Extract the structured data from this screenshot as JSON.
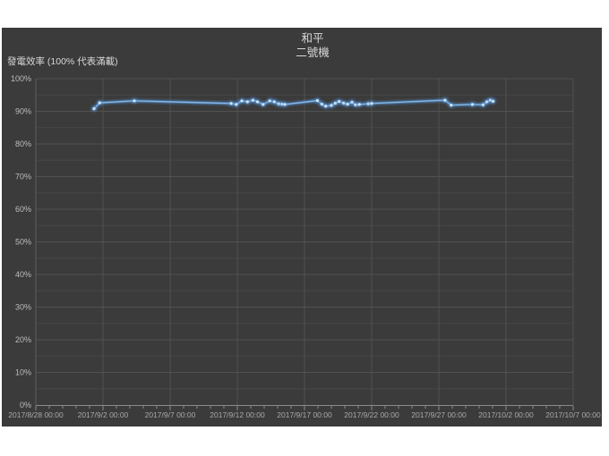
{
  "chart": {
    "title_lines": [
      "和平",
      "二號機"
    ],
    "y_axis_title": "發電效率 (100% 代表滿載)",
    "colors": {
      "canvas_bg": "#3b3b3b",
      "gridline_major": "#525252",
      "gridline_minor": "#464646",
      "axis_line": "#8a8a8a",
      "y_label": "#bdbdbd",
      "x_label": "#a9a9a9",
      "title_text": "#d9d9d9",
      "line_core": "#82b4e8",
      "line_main": "#5b9bd5",
      "line_glow": "#4f8fd4",
      "marker": "#cfe3f5"
    }
  },
  "chart_data": {
    "type": "line",
    "title": "和平 二號機",
    "ylabel": "發電效率 (100% 代表滿載)",
    "xlabel": "",
    "ylim": [
      0,
      100
    ],
    "y_major_step": 10,
    "y_minor_step": 5,
    "grid": true,
    "legend": "none",
    "x_start": "2017/8/28 00:00",
    "x_end": "2017/10/7 00:00",
    "x_tick_interval_days": 5,
    "x_minor_tick_interval_days": 1,
    "x_tick_labels": [
      "2017/8/28 00:00",
      "2017/9/2 00:00",
      "2017/9/7 00:00",
      "2017/9/12 00:00",
      "2017/9/17 00:00",
      "2017/9/22 00:00",
      "2017/9/27 00:00",
      "2017/10/2 00:00",
      "2017/10/7 00:00"
    ],
    "y_tick_labels": [
      "0%",
      "10%",
      "20%",
      "30%",
      "40%",
      "50%",
      "60%",
      "70%",
      "80%",
      "90%",
      "100%"
    ],
    "series": [
      {
        "name": "發電效率",
        "points": [
          {
            "date": "2017/9/1 08:00",
            "value": 90.8
          },
          {
            "date": "2017/9/1 18:00",
            "value": 92.6
          },
          {
            "date": "2017/9/4 08:00",
            "value": 93.2
          },
          {
            "date": "2017/9/11 13:00",
            "value": 92.4
          },
          {
            "date": "2017/9/11 22:00",
            "value": 92.1
          },
          {
            "date": "2017/9/12 08:00",
            "value": 93.2
          },
          {
            "date": "2017/9/12 18:00",
            "value": 92.9
          },
          {
            "date": "2017/9/13 04:00",
            "value": 93.4
          },
          {
            "date": "2017/9/13 12:00",
            "value": 92.9
          },
          {
            "date": "2017/9/13 22:00",
            "value": 92.1
          },
          {
            "date": "2017/9/14 10:00",
            "value": 93.2
          },
          {
            "date": "2017/9/14 18:00",
            "value": 92.9
          },
          {
            "date": "2017/9/15 02:00",
            "value": 92.3
          },
          {
            "date": "2017/9/15 08:00",
            "value": 92.2
          },
          {
            "date": "2017/9/15 13:00",
            "value": 92.1
          },
          {
            "date": "2017/9/17 23:00",
            "value": 93.3
          },
          {
            "date": "2017/9/18 07:00",
            "value": 92.2
          },
          {
            "date": "2017/9/18 14:00",
            "value": 91.6
          },
          {
            "date": "2017/9/19 00:00",
            "value": 91.8
          },
          {
            "date": "2017/9/19 07:00",
            "value": 92.5
          },
          {
            "date": "2017/9/19 14:00",
            "value": 93.0
          },
          {
            "date": "2017/9/19 22:00",
            "value": 92.5
          },
          {
            "date": "2017/9/20 05:00",
            "value": 92.2
          },
          {
            "date": "2017/9/20 13:00",
            "value": 92.8
          },
          {
            "date": "2017/9/20 19:00",
            "value": 92.0
          },
          {
            "date": "2017/9/21 02:00",
            "value": 92.1
          },
          {
            "date": "2017/9/21 18:00",
            "value": 92.3
          },
          {
            "date": "2017/9/22 00:00",
            "value": 92.4
          },
          {
            "date": "2017/9/27 11:00",
            "value": 93.4
          },
          {
            "date": "2017/9/27 22:00",
            "value": 91.9
          },
          {
            "date": "2017/9/29 12:00",
            "value": 92.1
          },
          {
            "date": "2017/9/30 07:00",
            "value": 92.0
          },
          {
            "date": "2017/9/30 14:00",
            "value": 92.9
          },
          {
            "date": "2017/9/30 20:00",
            "value": 93.4
          },
          {
            "date": "2017/10/1 01:00",
            "value": 93.1
          }
        ]
      }
    ]
  }
}
